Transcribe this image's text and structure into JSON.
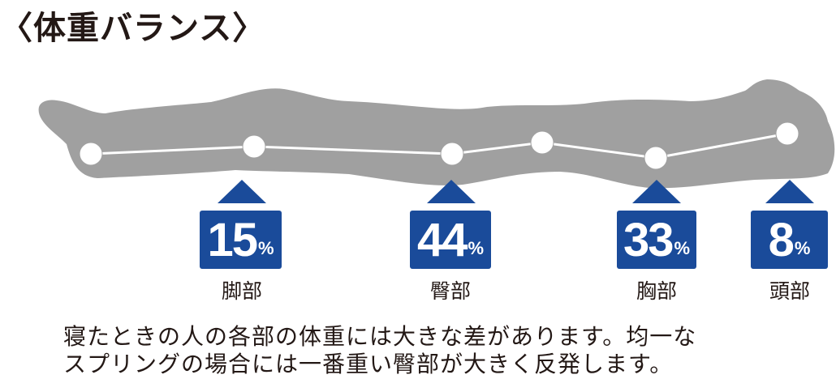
{
  "title": "〈体重バランス〉",
  "colors": {
    "body": "#a0a0a0",
    "accent": "#1a4b9a",
    "line": "#ffffff"
  },
  "parts": [
    {
      "value": "15",
      "unit": "%",
      "label": "脚部"
    },
    {
      "value": "44",
      "unit": "%",
      "label": "臀部"
    },
    {
      "value": "33",
      "unit": "%",
      "label": "胸部"
    },
    {
      "value": "8",
      "unit": "%",
      "label": "頭部"
    }
  ],
  "description": [
    "寝たときの人の各部の体重には大きな差があります。均一な",
    "スプリングの場合には一番重い臀部が大きく反発します。"
  ]
}
